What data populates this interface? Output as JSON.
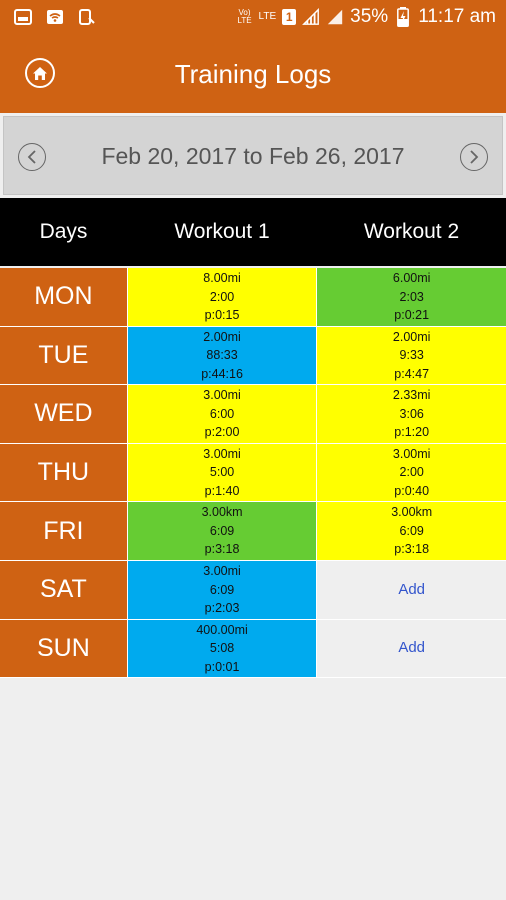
{
  "status_bar": {
    "battery": "35%",
    "time": "11:17 am",
    "volte_label": "Vo) LTE",
    "lte_label": "LTE",
    "sim_slot": "1"
  },
  "header": {
    "title": "Training Logs"
  },
  "date_nav": {
    "range": "Feb 20, 2017 to Feb 26, 2017"
  },
  "table": {
    "columns": [
      "Days",
      "Workout 1",
      "Workout 2"
    ],
    "rows": [
      {
        "day": "MON",
        "w1": {
          "dist": "8.00mi",
          "time": "2:00",
          "pace": "p:0:15",
          "color": "#ffff00"
        },
        "w2": {
          "dist": "6.00mi",
          "time": "2:03",
          "pace": "p:0:21",
          "color": "#66cc33"
        }
      },
      {
        "day": "TUE",
        "w1": {
          "dist": "2.00mi",
          "time": "88:33",
          "pace": "p:44:16",
          "color": "#00aaee"
        },
        "w2": {
          "dist": "2.00mi",
          "time": "9:33",
          "pace": "p:4:47",
          "color": "#ffff00"
        }
      },
      {
        "day": "WED",
        "w1": {
          "dist": "3.00mi",
          "time": "6:00",
          "pace": "p:2:00",
          "color": "#ffff00"
        },
        "w2": {
          "dist": "2.33mi",
          "time": "3:06",
          "pace": "p:1:20",
          "color": "#ffff00"
        }
      },
      {
        "day": "THU",
        "w1": {
          "dist": "3.00mi",
          "time": "5:00",
          "pace": "p:1:40",
          "color": "#ffff00"
        },
        "w2": {
          "dist": "3.00mi",
          "time": "2:00",
          "pace": "p:0:40",
          "color": "#ffff00"
        }
      },
      {
        "day": "FRI",
        "w1": {
          "dist": "3.00km",
          "time": "6:09",
          "pace": "p:3:18",
          "color": "#66cc33"
        },
        "w2": {
          "dist": "3.00km",
          "time": "6:09",
          "pace": "p:3:18",
          "color": "#ffff00"
        }
      },
      {
        "day": "SAT",
        "w1": {
          "dist": "3.00mi",
          "time": "6:09",
          "pace": "p:2:03",
          "color": "#00aaee"
        },
        "w2_add": "Add"
      },
      {
        "day": "SUN",
        "w1": {
          "dist": "400.00mi",
          "time": "5:08",
          "pace": "p:0:01",
          "color": "#00aaee"
        },
        "w2_add": "Add"
      }
    ]
  },
  "colors": {
    "brand": "#cf6213",
    "header_bg": "#000000",
    "add_link": "#3355cc"
  }
}
